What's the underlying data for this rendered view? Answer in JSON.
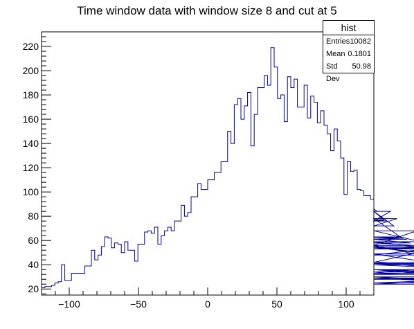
{
  "chart_data": {
    "type": "bar",
    "style": "step-histogram",
    "title": "Time window data with window size 8 and cut at 5",
    "xlabel": "",
    "ylabel": "",
    "xlim": [
      -120,
      120
    ],
    "ylim": [
      15,
      232
    ],
    "bin_width": 2.4,
    "x_ticks": [
      -100,
      -50,
      0,
      50,
      100
    ],
    "x_tick_labels": [
      "−100",
      "−50",
      "0",
      "50",
      "100"
    ],
    "y_ticks": [
      20,
      40,
      60,
      80,
      100,
      120,
      140,
      160,
      180,
      200,
      220
    ],
    "y_tick_labels": [
      "20",
      "40",
      "60",
      "80",
      "100",
      "120",
      "140",
      "160",
      "180",
      "200",
      "220"
    ],
    "grid": false,
    "line_color": "#000099",
    "values": [
      21,
      22,
      22,
      23,
      25,
      26,
      40,
      27,
      27,
      33,
      33,
      33,
      33,
      39,
      39,
      52,
      44,
      48,
      55,
      63,
      62,
      54,
      58,
      57,
      50,
      59,
      52,
      52,
      43,
      57,
      57,
      67,
      68,
      66,
      71,
      57,
      64,
      68,
      71,
      68,
      76,
      76,
      89,
      80,
      83,
      96,
      96,
      107,
      102,
      102,
      110,
      110,
      116,
      116,
      125,
      125,
      150,
      140,
      172,
      177,
      160,
      171,
      182,
      138,
      164,
      186,
      186,
      196,
      188,
      219,
      203,
      177,
      180,
      158,
      195,
      186,
      193,
      170,
      170,
      188,
      161,
      179,
      174,
      157,
      167,
      155,
      148,
      134,
      152,
      142,
      128,
      98,
      125,
      117,
      118,
      102,
      101,
      97,
      97,
      94,
      86,
      84,
      84,
      77,
      76,
      84,
      72,
      78,
      63,
      62,
      61,
      58,
      56,
      68,
      59,
      54,
      53,
      55,
      48,
      54,
      49,
      40,
      42,
      56,
      42,
      36,
      34,
      36,
      33,
      33,
      41,
      40,
      36,
      32,
      36,
      28,
      30,
      25,
      29,
      24,
      29
    ]
  },
  "stats": {
    "title": "hist",
    "entries_label": "Entries",
    "entries_value": "10082",
    "mean_label": "Mean",
    "mean_value": "0.1801",
    "stddev_label": "Std Dev",
    "stddev_value": "50.98"
  }
}
